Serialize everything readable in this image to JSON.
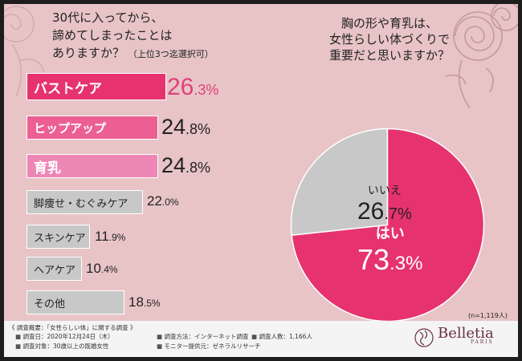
{
  "left_question": {
    "line1": "30代に入ってから、",
    "line2": "諦めてしまったことは",
    "line3": "ありますか？",
    "note": "（上位3つ迄選択可）"
  },
  "right_question": {
    "line1": "胸の形や育乳は、",
    "line2": "女性らしい体づくりで",
    "line3": "重要だと思いますか？"
  },
  "chart_data": [
    {
      "type": "bar",
      "orientation": "horizontal",
      "categories": [
        "バストケア",
        "ヒップアップ",
        "育乳",
        "脚痩せ・むぐみケア",
        "スキンケア",
        "ヘアケア",
        "その他"
      ],
      "values": [
        26.3,
        24.8,
        24.8,
        22.0,
        11.9,
        10.4,
        18.5
      ],
      "value_labels": [
        {
          "big": "26",
          "small": ".3%"
        },
        {
          "big": "24",
          "small": ".8%"
        },
        {
          "big": "24",
          "small": ".8%"
        },
        {
          "big": "22",
          "small": ".0%"
        },
        {
          "big": "11",
          "small": ".9%"
        },
        {
          "big": "10",
          "small": ".4%"
        },
        {
          "big": "18",
          "small": ".5%"
        }
      ],
      "colors": [
        "#e6336f",
        "#ec5f93",
        "#ee86b6",
        "#c8c8c8",
        "#c8c8c8",
        "#c8c8c8",
        "#c8c8c8"
      ]
    },
    {
      "type": "pie",
      "slices": [
        {
          "label": "はい",
          "value": 73.3,
          "big": "73",
          "small": ".3%",
          "color": "#e6336f"
        },
        {
          "label": "いいえ",
          "value": 26.7,
          "big": "26",
          "small": ".7%",
          "color": "#c8c8c8"
        }
      ],
      "note": "(n=1,119人)"
    }
  ],
  "footer": {
    "title": "《 調査概要：「女性らしい体」に関する調査 》",
    "items": [
      "調査日：2020年12月24日（木）",
      "調査方法：インターネット調査",
      "調査人数：1,166人",
      "調査対象：30歳以上の既婚女性",
      "モニター提供元：ゼネラルリサーチ"
    ]
  },
  "logo": {
    "brand": "Belletia",
    "sub": "PARIS"
  }
}
